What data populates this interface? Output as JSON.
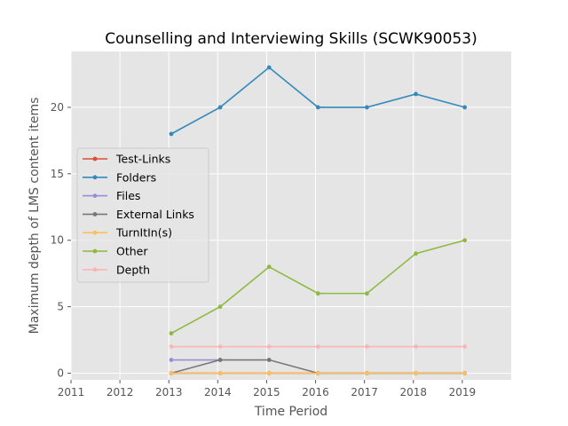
{
  "chart_data": {
    "type": "line",
    "title": "Counselling and Interviewing Skills (SCWK90053)",
    "xlabel": "Time Period",
    "ylabel": "Maximum depth of LMS content items",
    "xlim": [
      2011,
      2020
    ],
    "ylim": [
      -0.5,
      24.2
    ],
    "x_ticks": [
      "2011",
      "2012",
      "2013",
      "2014",
      "2015",
      "2016",
      "2017",
      "2018",
      "2019"
    ],
    "y_ticks": [
      "0",
      "5",
      "10",
      "15",
      "20"
    ],
    "grid": true,
    "legend_position": "center-left",
    "x": [
      2013.05,
      2014.05,
      2015.05,
      2016.05,
      2017.05,
      2018.05,
      2019.05
    ],
    "series": [
      {
        "name": "Test-Links",
        "color": "#E24A33",
        "values": [
          0,
          0,
          0,
          0,
          0,
          0,
          0
        ]
      },
      {
        "name": "Folders",
        "color": "#348ABD",
        "values": [
          18,
          20,
          23,
          20,
          20,
          21,
          20
        ]
      },
      {
        "name": "Files",
        "color": "#988ED5",
        "values": [
          1,
          1,
          null,
          null,
          null,
          null,
          null
        ]
      },
      {
        "name": "External Links",
        "color": "#777777",
        "values": [
          0,
          1,
          1,
          0,
          0,
          0,
          0
        ]
      },
      {
        "name": "TurnItIn(s)",
        "color": "#FBC15E",
        "values": [
          0,
          0,
          0,
          0,
          0,
          0,
          0
        ]
      },
      {
        "name": "Other",
        "color": "#8EBA42",
        "values": [
          3,
          5,
          8,
          6,
          6,
          9,
          10
        ]
      },
      {
        "name": "Depth",
        "color": "#FFB5B8",
        "values": [
          2,
          2,
          2,
          2,
          2,
          2,
          2
        ]
      }
    ]
  }
}
